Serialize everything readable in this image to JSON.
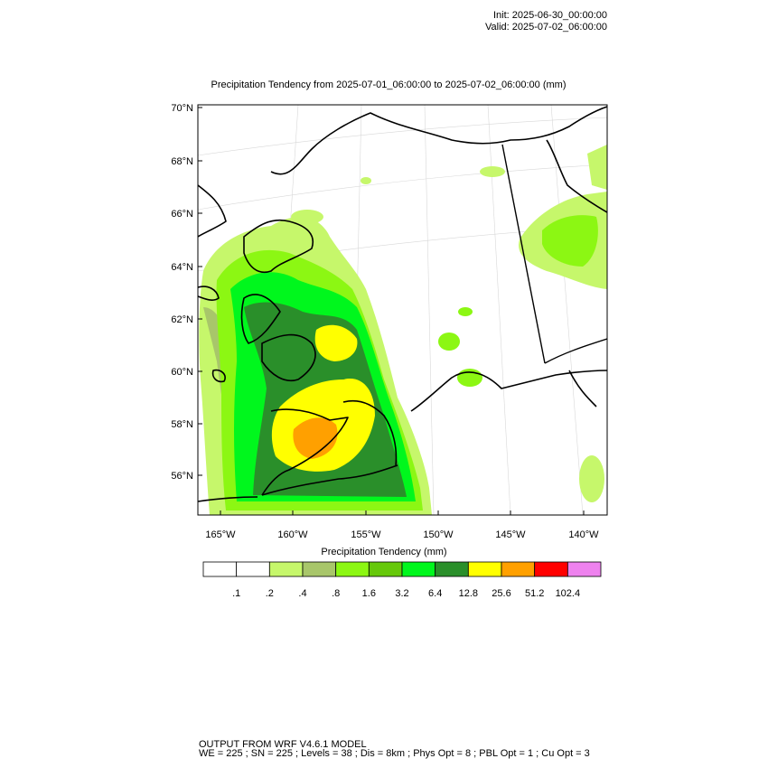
{
  "header": {
    "init": "Init: 2025-06-30_00:00:00",
    "valid": "Valid: 2025-07-02_06:00:00"
  },
  "map": {
    "title": "Precipitation Tendency from 2025-07-01_06:00:00 to 2025-07-02_06:00:00   (mm)",
    "lat_labels": [
      "70°N",
      "68°N",
      "66°N",
      "64°N",
      "62°N",
      "60°N",
      "58°N",
      "56°N"
    ],
    "lon_labels": [
      "165°W",
      "160°W",
      "155°W",
      "150°W",
      "145°W",
      "140°W"
    ],
    "lat_range": [
      54.5,
      70
    ],
    "lon_range": [
      -166.5,
      -139
    ]
  },
  "colorbar": {
    "title": "Precipitation Tendency  (mm)",
    "colors": [
      "#ffffff",
      "#ffffff",
      "#c6f76b",
      "#a8c66a",
      "#8cf713",
      "#66c80a",
      "#00f71d",
      "#2a8f2a",
      "#ffff00",
      "#ffa000",
      "#ff0000",
      "#ee82ee"
    ],
    "labels": [
      ".1",
      ".2",
      ".4",
      ".8",
      "1.6",
      "3.2",
      "6.4",
      "12.8",
      "25.6",
      "51.2",
      "102.4"
    ]
  },
  "footer": {
    "line1": "OUTPUT FROM WRF V4.6.1 MODEL",
    "line2": "WE = 225 ; SN = 225 ; Levels = 38 ; Dis = 8km ; Phys Opt = 8 ; PBL Opt = 1 ; Cu Opt = 3"
  }
}
